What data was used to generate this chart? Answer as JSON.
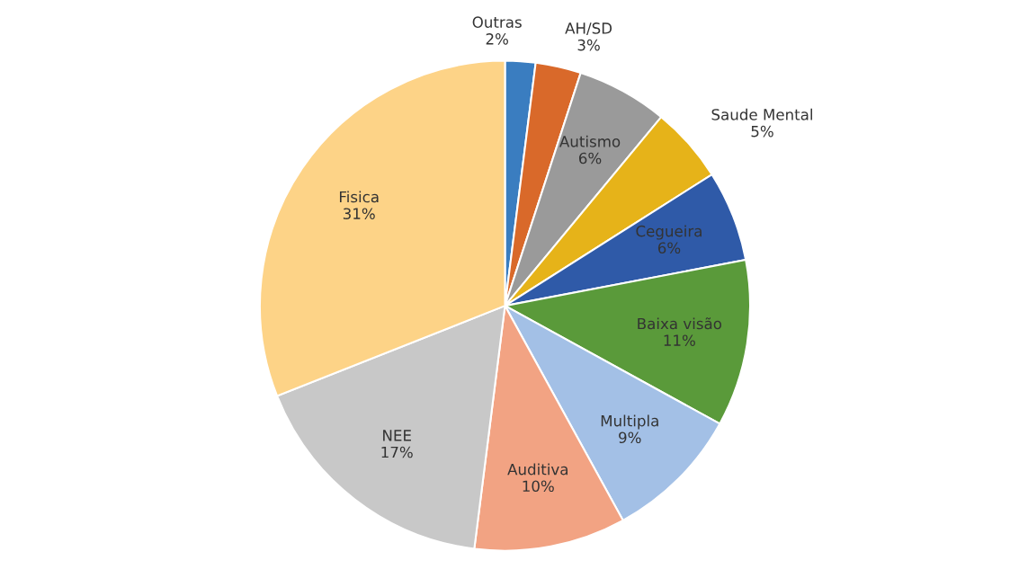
{
  "chart_data": {
    "type": "pie",
    "categories": [
      "Outras",
      "AH/SD",
      "Autismo",
      "Saude Mental",
      "Cegueira",
      "Baixa visão",
      "Multipla",
      "Auditiva",
      "NEE",
      "Fisica"
    ],
    "values": [
      2,
      3,
      6,
      5,
      6,
      11,
      9,
      10,
      17,
      31
    ],
    "value_labels": [
      "2%",
      "3%",
      "6%",
      "5%",
      "6%",
      "11%",
      "9%",
      "10%",
      "17%",
      "31%"
    ],
    "colors": [
      "#3a7dc0",
      "#d9692a",
      "#9a9a9a",
      "#e6b319",
      "#2f5aa8",
      "#5a9a3a",
      "#a3c0e6",
      "#f2a383",
      "#c8c8c8",
      "#fdd387"
    ]
  }
}
